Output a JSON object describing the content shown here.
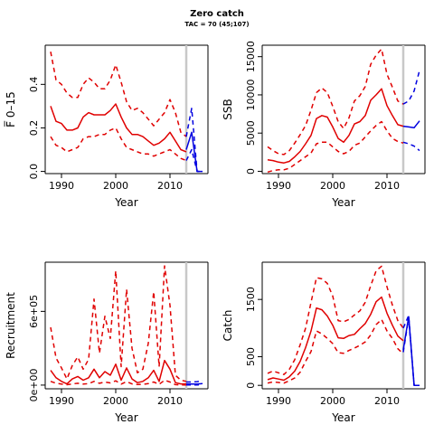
{
  "title": "Zero catch",
  "subtitle": "TAC = 70 (45;107)",
  "colors": {
    "history": "#e00000",
    "projection": "#0000e0",
    "tac_line": "#c8c8c8"
  },
  "chart_data": [
    {
      "type": "line",
      "panel": "fbar",
      "xlabel": "Year",
      "ylabel": "F̅ 0–15",
      "xlim": [
        1987,
        2017
      ],
      "ylim": [
        -0.01,
        0.58
      ],
      "xticks": [
        "1990",
        "2000",
        "2010"
      ],
      "yticks": [
        "0.0",
        "0.2",
        "0.4"
      ],
      "vline_year": 2013,
      "series": [
        {
          "role": "hist_median",
          "style": "solid",
          "color": "red",
          "x": [
            1988,
            1989,
            1990,
            1991,
            1992,
            1993,
            1994,
            1995,
            1996,
            1997,
            1998,
            1999,
            2000,
            2001,
            2002,
            2003,
            2004,
            2005,
            2006,
            2007,
            2008,
            2009,
            2010,
            2011,
            2012,
            2013
          ],
          "y": [
            0.3,
            0.23,
            0.22,
            0.19,
            0.19,
            0.2,
            0.25,
            0.27,
            0.26,
            0.26,
            0.26,
            0.28,
            0.31,
            0.25,
            0.2,
            0.17,
            0.17,
            0.16,
            0.14,
            0.12,
            0.13,
            0.15,
            0.18,
            0.14,
            0.1,
            0.09
          ]
        },
        {
          "role": "hist_upper",
          "style": "dashed",
          "color": "red",
          "x": [
            1988,
            1989,
            1990,
            1991,
            1992,
            1993,
            1994,
            1995,
            1996,
            1997,
            1998,
            1999,
            2000,
            2001,
            2002,
            2003,
            2004,
            2005,
            2006,
            2007,
            2008,
            2009,
            2010,
            2011,
            2012,
            2013
          ],
          "y": [
            0.55,
            0.42,
            0.4,
            0.36,
            0.34,
            0.34,
            0.4,
            0.43,
            0.41,
            0.38,
            0.38,
            0.42,
            0.49,
            0.41,
            0.32,
            0.28,
            0.29,
            0.27,
            0.24,
            0.21,
            0.24,
            0.27,
            0.33,
            0.27,
            0.18,
            0.16
          ]
        },
        {
          "role": "hist_lower",
          "style": "dashed",
          "color": "red",
          "x": [
            1988,
            1989,
            1990,
            1991,
            1992,
            1993,
            1994,
            1995,
            1996,
            1997,
            1998,
            1999,
            2000,
            2001,
            2002,
            2003,
            2004,
            2005,
            2006,
            2007,
            2008,
            2009,
            2010,
            2011,
            2012,
            2013
          ],
          "y": [
            0.16,
            0.12,
            0.11,
            0.09,
            0.1,
            0.11,
            0.15,
            0.16,
            0.16,
            0.17,
            0.17,
            0.19,
            0.2,
            0.15,
            0.11,
            0.1,
            0.09,
            0.08,
            0.08,
            0.07,
            0.08,
            0.09,
            0.1,
            0.08,
            0.06,
            0.05
          ]
        },
        {
          "role": "proj_median",
          "style": "solid",
          "color": "blue",
          "x": [
            2013,
            2014,
            2015,
            2016
          ],
          "y": [
            0.1,
            0.18,
            0.0,
            0.0
          ]
        },
        {
          "role": "proj_upper",
          "style": "dashed",
          "color": "blue",
          "x": [
            2013,
            2014,
            2015,
            2016
          ],
          "y": [
            0.16,
            0.29,
            0.0,
            0.0
          ]
        },
        {
          "role": "proj_lower",
          "style": "dashed",
          "color": "blue",
          "x": [
            2013,
            2014,
            2015,
            2016
          ],
          "y": [
            0.05,
            0.1,
            0.0,
            0.0
          ]
        }
      ]
    },
    {
      "type": "line",
      "panel": "ssb",
      "xlabel": "Year",
      "ylabel": "SSB",
      "xlim": [
        1987,
        2017
      ],
      "ylim": [
        -300,
        16500
      ],
      "xticks": [
        "1990",
        "2000",
        "2010"
      ],
      "yticks": [
        "0",
        "5000",
        "10000",
        "15000"
      ],
      "vline_year": 2013,
      "series": [
        {
          "role": "hist_median",
          "style": "solid",
          "color": "red",
          "x": [
            1988,
            1989,
            1990,
            1991,
            1992,
            1993,
            1994,
            1995,
            1996,
            1997,
            1998,
            1999,
            2000,
            2001,
            2002,
            2003,
            2004,
            2005,
            2006,
            2007,
            2008,
            2009,
            2010,
            2011,
            2012,
            2013
          ],
          "y": [
            1500,
            1400,
            1200,
            1100,
            1300,
            1900,
            2600,
            3600,
            4700,
            6900,
            7300,
            7100,
            5800,
            4300,
            3800,
            4700,
            6200,
            6500,
            7300,
            9300,
            10000,
            10800,
            8600,
            7300,
            6100,
            5900
          ]
        },
        {
          "role": "hist_upper",
          "style": "dashed",
          "color": "red",
          "x": [
            1988,
            1989,
            1990,
            1991,
            1992,
            1993,
            1994,
            1995,
            1996,
            1997,
            1998,
            1999,
            2000,
            2001,
            2002,
            2003,
            2004,
            2005,
            2006,
            2007,
            2008,
            2009,
            2010,
            2011,
            2012,
            2013
          ],
          "y": [
            3200,
            2700,
            2300,
            2200,
            2700,
            3700,
            4800,
            6000,
            8000,
            10300,
            10900,
            10300,
            8500,
            6500,
            5600,
            7000,
            9200,
            9900,
            11100,
            14000,
            15200,
            16000,
            12700,
            11000,
            9200,
            8800
          ]
        },
        {
          "role": "hist_lower",
          "style": "dashed",
          "color": "red",
          "x": [
            1988,
            1989,
            1990,
            1991,
            1992,
            1993,
            1994,
            1995,
            1996,
            1997,
            1998,
            1999,
            2000,
            2001,
            2002,
            2003,
            2004,
            2005,
            2006,
            2007,
            2008,
            2009,
            2010,
            2011,
            2012,
            2013
          ],
          "y": [
            -100,
            100,
            200,
            200,
            400,
            900,
            1400,
            1900,
            2400,
            3600,
            3800,
            3800,
            3200,
            2600,
            2300,
            2600,
            3400,
            3700,
            4500,
            5300,
            6000,
            6500,
            5300,
            4300,
            3900,
            3700
          ]
        },
        {
          "role": "proj_median",
          "style": "solid",
          "color": "blue",
          "x": [
            2013,
            2014,
            2015,
            2016
          ],
          "y": [
            5900,
            5800,
            5700,
            6600
          ]
        },
        {
          "role": "proj_upper",
          "style": "dashed",
          "color": "blue",
          "x": [
            2013,
            2014,
            2015,
            2016
          ],
          "y": [
            8800,
            9200,
            10500,
            13200
          ]
        },
        {
          "role": "proj_lower",
          "style": "dashed",
          "color": "blue",
          "x": [
            2013,
            2014,
            2015,
            2016
          ],
          "y": [
            3800,
            3600,
            3300,
            2700
          ]
        }
      ]
    },
    {
      "type": "line",
      "panel": "recruitment",
      "xlabel": "Year",
      "ylabel": "Recruitment",
      "xlim": [
        1987,
        2017
      ],
      "ylim": [
        -30000,
        1000000
      ],
      "xticks": [
        "1990",
        "2000",
        "2010"
      ],
      "yticks": [
        "0e+00",
        "6e+05"
      ],
      "vline_year": 2013,
      "series": [
        {
          "role": "hist_median",
          "style": "solid",
          "color": "red",
          "x": [
            1988,
            1989,
            1990,
            1991,
            1992,
            1993,
            1994,
            1995,
            1996,
            1997,
            1998,
            1999,
            2000,
            2001,
            2002,
            2003,
            2004,
            2005,
            2006,
            2007,
            2008,
            2009,
            2010,
            2011,
            2012,
            2013
          ],
          "y": [
            120000,
            60000,
            30000,
            10000,
            50000,
            70000,
            40000,
            60000,
            130000,
            60000,
            110000,
            80000,
            170000,
            40000,
            140000,
            50000,
            20000,
            30000,
            60000,
            120000,
            30000,
            200000,
            130000,
            20000,
            10000,
            10000
          ]
        },
        {
          "role": "hist_upper",
          "style": "dashed",
          "color": "red",
          "x": [
            1988,
            1989,
            1990,
            1991,
            1992,
            1993,
            1994,
            1995,
            1996,
            1997,
            1998,
            1999,
            2000,
            2001,
            2002,
            2003,
            2004,
            2005,
            2006,
            2007,
            2008,
            2009,
            2010,
            2011,
            2012,
            2013
          ],
          "y": [
            470000,
            220000,
            140000,
            50000,
            160000,
            230000,
            130000,
            210000,
            700000,
            260000,
            560000,
            380000,
            930000,
            150000,
            780000,
            300000,
            100000,
            130000,
            340000,
            760000,
            150000,
            970000,
            650000,
            80000,
            40000,
            30000
          ]
        },
        {
          "role": "hist_lower",
          "style": "dashed",
          "color": "red",
          "x": [
            1988,
            1989,
            1990,
            1991,
            1992,
            1993,
            1994,
            1995,
            1996,
            1997,
            1998,
            1999,
            2000,
            2001,
            2002,
            2003,
            2004,
            2005,
            2006,
            2007,
            2008,
            2009,
            2010,
            2011,
            2012,
            2013
          ],
          "y": [
            30000,
            15000,
            8000,
            3000,
            10000,
            15000,
            8000,
            12000,
            30000,
            15000,
            25000,
            18000,
            35000,
            8000,
            28000,
            10000,
            5000,
            6000,
            12000,
            25000,
            6000,
            40000,
            25000,
            4000,
            2000,
            2000
          ]
        },
        {
          "role": "proj_median",
          "style": "solid",
          "color": "blue",
          "x": [
            2013,
            2014,
            2015,
            2016
          ],
          "y": [
            8000,
            8000,
            9000,
            12000
          ]
        },
        {
          "role": "proj_upper",
          "style": "dashed",
          "color": "blue",
          "x": [
            2013,
            2014,
            2015,
            2016
          ],
          "y": [
            25000,
            25000,
            28000,
            35000
          ]
        },
        {
          "role": "proj_lower",
          "style": "dashed",
          "color": "blue",
          "x": [
            2013,
            2014,
            2015,
            2016
          ],
          "y": [
            2000,
            2000,
            2000,
            3000
          ]
        }
      ]
    },
    {
      "type": "line",
      "panel": "catch",
      "xlabel": "Year",
      "ylabel": "Catch",
      "xlim": [
        1987,
        2017
      ],
      "ylim": [
        -60,
        2150
      ],
      "xticks": [
        "1990",
        "2000",
        "2010"
      ],
      "yticks": [
        "0",
        "500",
        "1500"
      ],
      "vline_year": 2013,
      "series": [
        {
          "role": "hist_median",
          "style": "solid",
          "color": "red",
          "x": [
            1988,
            1989,
            1990,
            1991,
            1992,
            1993,
            1994,
            1995,
            1996,
            1997,
            1998,
            1999,
            2000,
            2001,
            2002,
            2003,
            2004,
            2005,
            2006,
            2007,
            2008,
            2009,
            2010,
            2011,
            2012,
            2013
          ],
          "y": [
            100,
            130,
            110,
            90,
            150,
            250,
            420,
            660,
            950,
            1350,
            1320,
            1210,
            1050,
            830,
            820,
            870,
            890,
            990,
            1080,
            1240,
            1460,
            1540,
            1260,
            1050,
            860,
            780
          ]
        },
        {
          "role": "hist_upper",
          "style": "dashed",
          "color": "red",
          "x": [
            1988,
            1989,
            1990,
            1991,
            1992,
            1993,
            1994,
            1995,
            1996,
            1997,
            1998,
            1999,
            2000,
            2001,
            2002,
            2003,
            2004,
            2005,
            2006,
            2007,
            2008,
            2009,
            2010,
            2011,
            2012,
            2013
          ],
          "y": [
            210,
            250,
            220,
            190,
            280,
            450,
            710,
            1000,
            1450,
            1880,
            1860,
            1780,
            1560,
            1130,
            1110,
            1150,
            1230,
            1300,
            1450,
            1740,
            2000,
            2080,
            1720,
            1400,
            1130,
            1000
          ]
        },
        {
          "role": "hist_lower",
          "style": "dashed",
          "color": "red",
          "x": [
            1988,
            1989,
            1990,
            1991,
            1992,
            1993,
            1994,
            1995,
            1996,
            1997,
            1998,
            1999,
            2000,
            2001,
            2002,
            2003,
            2004,
            2005,
            2006,
            2007,
            2008,
            2009,
            2010,
            2011,
            2012,
            2013
          ],
          "y": [
            40,
            60,
            50,
            40,
            80,
            130,
            230,
            420,
            590,
            950,
            900,
            820,
            730,
            570,
            560,
            610,
            650,
            700,
            760,
            880,
            1060,
            1150,
            950,
            820,
            640,
            550
          ]
        },
        {
          "role": "proj_median",
          "style": "solid",
          "color": "blue",
          "x": [
            2013,
            2014,
            2015,
            2016
          ],
          "y": [
            620,
            1200,
            0,
            0
          ]
        },
        {
          "role": "proj_upper",
          "style": "dashed",
          "color": "blue",
          "x": [
            2013,
            2014,
            2015,
            2016
          ],
          "y": [
            1000,
            1220,
            0,
            0
          ]
        },
        {
          "role": "proj_lower",
          "style": "dashed",
          "color": "blue",
          "x": [
            2013,
            2014,
            2015,
            2016
          ],
          "y": [
            580,
            1180,
            0,
            0
          ]
        }
      ]
    }
  ]
}
